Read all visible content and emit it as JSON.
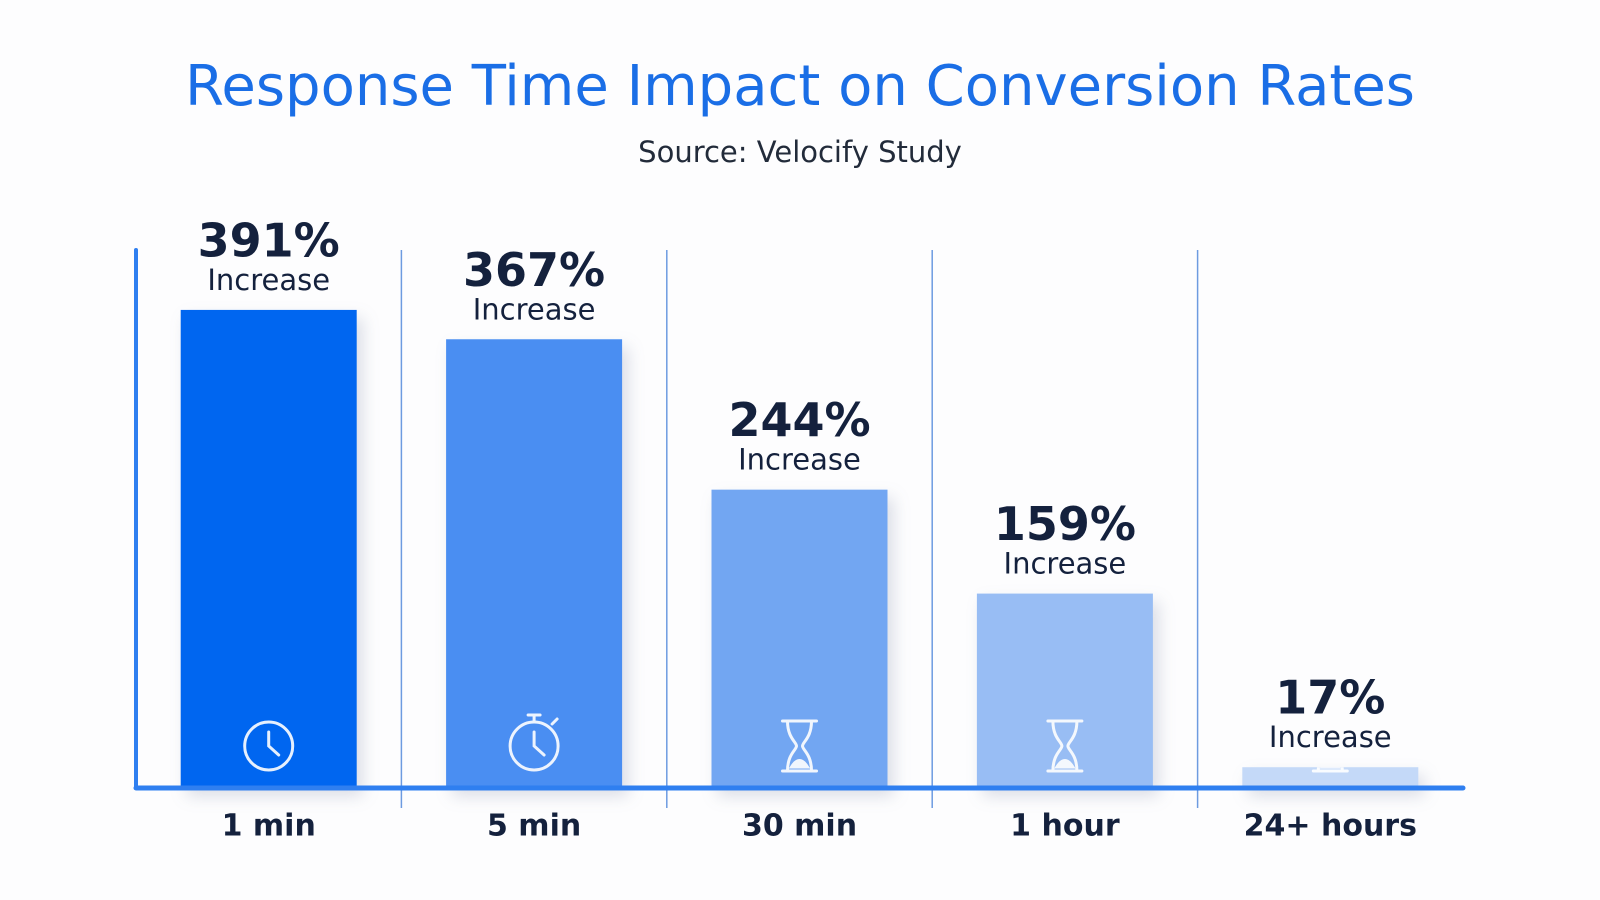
{
  "chart_data": {
    "type": "bar",
    "title": "Response Time Impact on Conversion Rates",
    "subtitle": "Source: Velocify Study",
    "categories": [
      "1 min",
      "5 min",
      "30 min",
      "1 hour",
      "24+ hours"
    ],
    "values": [
      391,
      367,
      244,
      159,
      17
    ],
    "value_labels": [
      "391%",
      "367%",
      "244%",
      "159%",
      "17%"
    ],
    "value_sublabels": [
      "Increase",
      "Increase",
      "Increase",
      "Increase",
      "Increase"
    ],
    "colors": [
      "#0066f0",
      "#4a8ef2",
      "#72a6f2",
      "#98bdf4",
      "#c4d9f8"
    ],
    "ylim": [
      0,
      440
    ]
  }
}
